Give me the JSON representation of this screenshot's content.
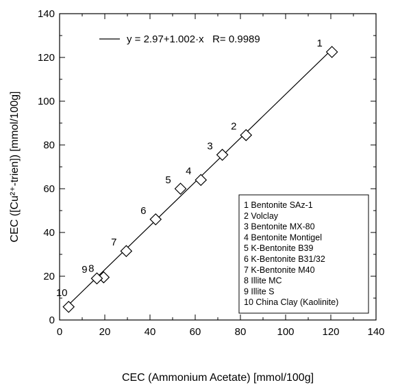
{
  "chart_data": {
    "type": "scatter",
    "xlabel": "CEC (Ammonium Acetate) [mmol/100g]",
    "ylabel": "CEC ([Cu²⁺-trien]) [mmol/100g]",
    "xlim": [
      0,
      140
    ],
    "ylim": [
      0,
      140
    ],
    "x_ticks": [
      "0",
      "20",
      "40",
      "60",
      "80",
      "100",
      "120",
      "140"
    ],
    "y_ticks": [
      "0",
      "20",
      "40",
      "60",
      "80",
      "100",
      "120",
      "140"
    ],
    "grid": false,
    "marker": "diamond",
    "fit": {
      "intercept": 2.97,
      "slope": 1.002,
      "r": 0.9989,
      "label": "y = 2.97+1.002·x   R= 0.9989",
      "x_range": [
        4,
        121
      ]
    },
    "points": [
      {
        "id": "1",
        "x": 120.5,
        "y": 122.5
      },
      {
        "id": "2",
        "x": 82.5,
        "y": 84.5
      },
      {
        "id": "3",
        "x": 72,
        "y": 75.5
      },
      {
        "id": "4",
        "x": 62.5,
        "y": 64
      },
      {
        "id": "5",
        "x": 53.5,
        "y": 60
      },
      {
        "id": "6",
        "x": 42.5,
        "y": 46
      },
      {
        "id": "7",
        "x": 29.5,
        "y": 31.5
      },
      {
        "id": "8",
        "x": 19.5,
        "y": 19.5
      },
      {
        "id": "9",
        "x": 16.5,
        "y": 19
      },
      {
        "id": "10",
        "x": 4,
        "y": 6
      }
    ],
    "legend": {
      "placement": "lower-right",
      "entries": [
        "1 Bentonite SAz-1",
        "2 Volclay",
        "3 Bentonite MX-80",
        "4 Bentonite Montigel",
        "5 K-Bentonite B39",
        "6 K-Bentonite B31/32",
        "7 K-Bentonite M40",
        "8 Illite MC",
        "9 Illite S",
        "10 China Clay (Kaolinite)"
      ]
    }
  }
}
